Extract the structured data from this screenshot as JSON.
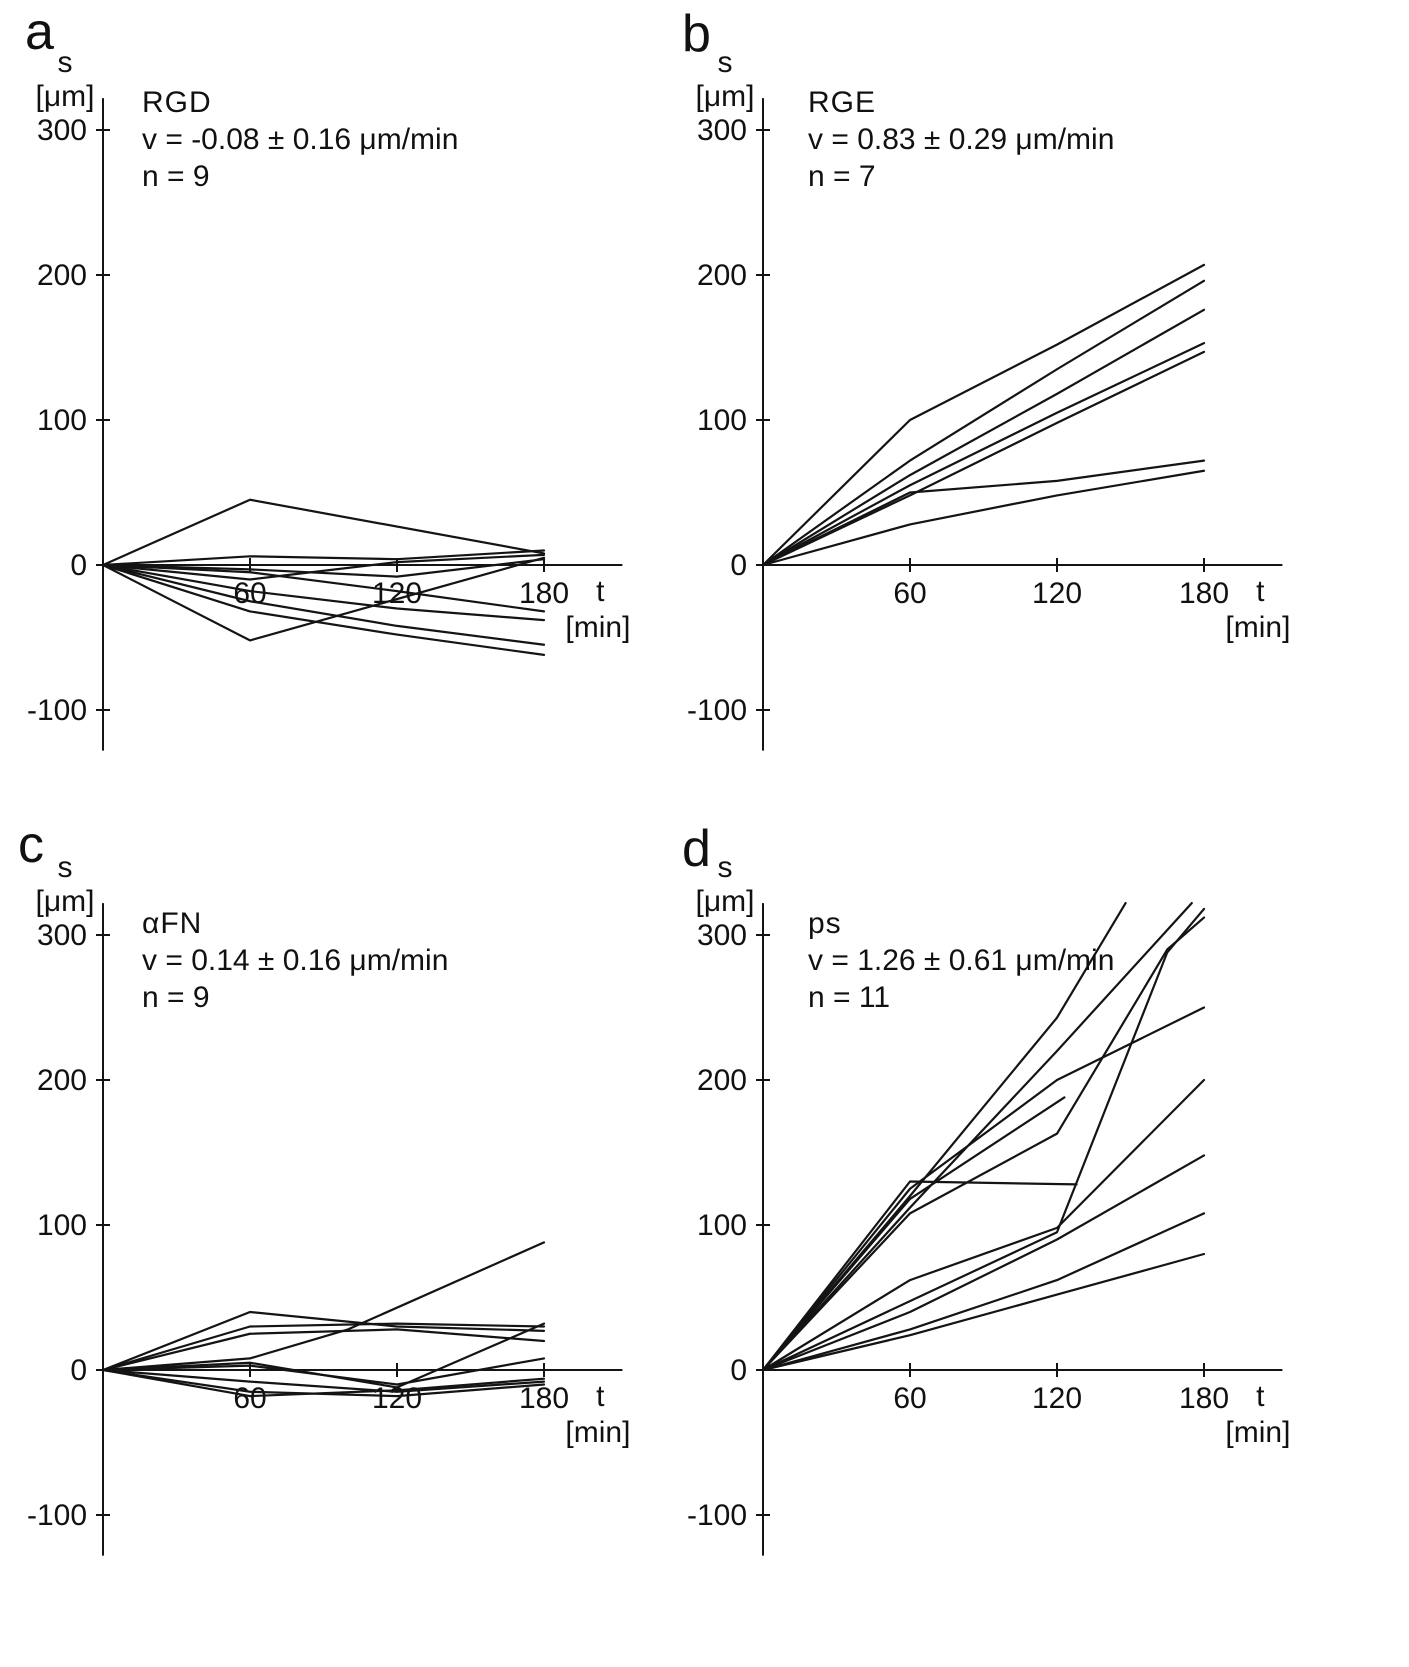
{
  "figure": {
    "background": "#ffffff",
    "line_color": "#141414",
    "text_color": "#111111"
  },
  "axis": {
    "y_label": "s",
    "y_unit": "[μm]",
    "x_label": "t",
    "x_unit": "[min]",
    "y_ticks": [
      300,
      200,
      100,
      0,
      -100
    ],
    "x_ticks": [
      60,
      120,
      180
    ]
  },
  "chart_data": [
    {
      "type": "line",
      "panel": "a",
      "title": "RGD",
      "stats": [
        "v  =  -0.08 ± 0.16 μm/min",
        "n  =  9"
      ],
      "xlabel": "t [min]",
      "ylabel": "s [μm]",
      "x_ticks": [
        60,
        120,
        180
      ],
      "y_ticks": [
        300,
        200,
        100,
        0,
        -100
      ],
      "xlim": [
        0,
        210
      ],
      "ylim": [
        -130,
        330
      ],
      "series": [
        {
          "points": [
            [
              0,
              0
            ],
            [
              60,
              45
            ],
            [
              180,
              8
            ]
          ]
        },
        {
          "points": [
            [
              0,
              0
            ],
            [
              60,
              -52
            ],
            [
              180,
              5
            ]
          ]
        },
        {
          "points": [
            [
              0,
              0
            ],
            [
              60,
              6
            ],
            [
              120,
              4
            ],
            [
              180,
              10
            ]
          ]
        },
        {
          "points": [
            [
              0,
              0
            ],
            [
              60,
              -3
            ],
            [
              120,
              -8
            ],
            [
              180,
              4
            ]
          ]
        },
        {
          "points": [
            [
              0,
              0
            ],
            [
              60,
              -10
            ],
            [
              120,
              2
            ],
            [
              180,
              7
            ]
          ]
        },
        {
          "points": [
            [
              0,
              0
            ],
            [
              60,
              -18
            ],
            [
              120,
              -30
            ],
            [
              180,
              -38
            ]
          ]
        },
        {
          "points": [
            [
              0,
              0
            ],
            [
              60,
              -25
            ],
            [
              120,
              -42
            ],
            [
              180,
              -55
            ]
          ]
        },
        {
          "points": [
            [
              0,
              0
            ],
            [
              60,
              -32
            ],
            [
              120,
              -48
            ],
            [
              180,
              -62
            ]
          ]
        },
        {
          "points": [
            [
              0,
              0
            ],
            [
              60,
              -5
            ],
            [
              120,
              -18
            ],
            [
              180,
              -32
            ]
          ]
        }
      ]
    },
    {
      "type": "line",
      "panel": "b",
      "title": "RGE",
      "stats": [
        "v  =  0.83 ± 0.29 μm/min",
        "n  =  7"
      ],
      "xlabel": "t [min]",
      "ylabel": "s [μm]",
      "x_ticks": [
        60,
        120,
        180
      ],
      "y_ticks": [
        300,
        200,
        100,
        0,
        -100
      ],
      "xlim": [
        0,
        210
      ],
      "ylim": [
        -130,
        330
      ],
      "series": [
        {
          "points": [
            [
              0,
              0
            ],
            [
              60,
              100
            ],
            [
              120,
              152
            ],
            [
              180,
              207
            ]
          ]
        },
        {
          "points": [
            [
              0,
              0
            ],
            [
              60,
              72
            ],
            [
              120,
              135
            ],
            [
              180,
              196
            ]
          ]
        },
        {
          "points": [
            [
              0,
              0
            ],
            [
              60,
              62
            ],
            [
              120,
              118
            ],
            [
              180,
              176
            ]
          ]
        },
        {
          "points": [
            [
              0,
              0
            ],
            [
              60,
              55
            ],
            [
              120,
              105
            ],
            [
              180,
              153
            ]
          ]
        },
        {
          "points": [
            [
              0,
              0
            ],
            [
              60,
              48
            ],
            [
              120,
              98
            ],
            [
              180,
              147
            ]
          ]
        },
        {
          "points": [
            [
              0,
              0
            ],
            [
              60,
              50
            ],
            [
              120,
              58
            ],
            [
              180,
              72
            ]
          ]
        },
        {
          "points": [
            [
              0,
              0
            ],
            [
              60,
              28
            ],
            [
              120,
              48
            ],
            [
              180,
              65
            ]
          ]
        }
      ]
    },
    {
      "type": "line",
      "panel": "c",
      "title": "αFN",
      "stats": [
        "v  =  0.14 ± 0.16 μm/min",
        "n  =  9"
      ],
      "xlabel": "t [min]",
      "ylabel": "s [μm]",
      "x_ticks": [
        60,
        120,
        180
      ],
      "y_ticks": [
        300,
        200,
        100,
        0,
        -100
      ],
      "xlim": [
        0,
        210
      ],
      "ylim": [
        -130,
        330
      ],
      "series": [
        {
          "points": [
            [
              0,
              0
            ],
            [
              60,
              40
            ],
            [
              120,
              30
            ],
            [
              180,
              27
            ]
          ]
        },
        {
          "points": [
            [
              0,
              0
            ],
            [
              60,
              30
            ],
            [
              120,
              32
            ],
            [
              180,
              30
            ]
          ]
        },
        {
          "points": [
            [
              0,
              0
            ],
            [
              60,
              25
            ],
            [
              120,
              28
            ],
            [
              180,
              20
            ]
          ]
        },
        {
          "points": [
            [
              0,
              0
            ],
            [
              60,
              8
            ],
            [
              100,
              28
            ],
            [
              180,
              88
            ]
          ]
        },
        {
          "points": [
            [
              0,
              0
            ],
            [
              60,
              5
            ],
            [
              120,
              -12
            ],
            [
              180,
              32
            ]
          ]
        },
        {
          "points": [
            [
              0,
              0
            ],
            [
              60,
              -8
            ],
            [
              120,
              -15
            ],
            [
              180,
              -8
            ]
          ]
        },
        {
          "points": [
            [
              0,
              0
            ],
            [
              60,
              -15
            ],
            [
              120,
              -18
            ],
            [
              180,
              -10
            ]
          ]
        },
        {
          "points": [
            [
              0,
              0
            ],
            [
              60,
              -18
            ],
            [
              120,
              -14
            ],
            [
              180,
              -6
            ]
          ]
        },
        {
          "points": [
            [
              0,
              0
            ],
            [
              60,
              3
            ],
            [
              120,
              -10
            ],
            [
              180,
              8
            ]
          ]
        }
      ]
    },
    {
      "type": "line",
      "panel": "d",
      "title": "ps",
      "stats": [
        "v  =  1.26 ± 0.61 μm/min",
        "n  = 11"
      ],
      "xlabel": "t [min]",
      "ylabel": "s [μm]",
      "x_ticks": [
        60,
        120,
        180
      ],
      "y_ticks": [
        300,
        200,
        100,
        0,
        -100
      ],
      "xlim": [
        0,
        210
      ],
      "ylim": [
        -130,
        330
      ],
      "series": [
        {
          "points": [
            [
              0,
              0
            ],
            [
              60,
              120
            ],
            [
              120,
              243
            ],
            [
              148,
              322
            ]
          ]
        },
        {
          "points": [
            [
              0,
              0
            ],
            [
              60,
              112
            ],
            [
              120,
              220
            ],
            [
              175,
              322
            ]
          ]
        },
        {
          "points": [
            [
              0,
              0
            ],
            [
              60,
              108
            ],
            [
              120,
              163
            ],
            [
              165,
              290
            ],
            [
              180,
              312
            ]
          ]
        },
        {
          "points": [
            [
              0,
              0
            ],
            [
              120,
              95
            ],
            [
              165,
              288
            ],
            [
              180,
              318
            ]
          ]
        },
        {
          "points": [
            [
              0,
              0
            ],
            [
              60,
              125
            ],
            [
              120,
              200
            ],
            [
              180,
              250
            ]
          ]
        },
        {
          "points": [
            [
              0,
              0
            ],
            [
              60,
              130
            ],
            [
              128,
              128
            ]
          ]
        },
        {
          "points": [
            [
              0,
              0
            ],
            [
              60,
              118
            ],
            [
              123,
              188
            ]
          ]
        },
        {
          "points": [
            [
              0,
              0
            ],
            [
              60,
              62
            ],
            [
              120,
              98
            ],
            [
              180,
              200
            ]
          ]
        },
        {
          "points": [
            [
              0,
              0
            ],
            [
              60,
              40
            ],
            [
              120,
              90
            ],
            [
              180,
              148
            ]
          ]
        },
        {
          "points": [
            [
              0,
              0
            ],
            [
              60,
              28
            ],
            [
              120,
              62
            ],
            [
              180,
              108
            ]
          ]
        },
        {
          "points": [
            [
              0,
              0
            ],
            [
              60,
              24
            ],
            [
              120,
              52
            ],
            [
              180,
              80
            ]
          ]
        }
      ]
    }
  ]
}
